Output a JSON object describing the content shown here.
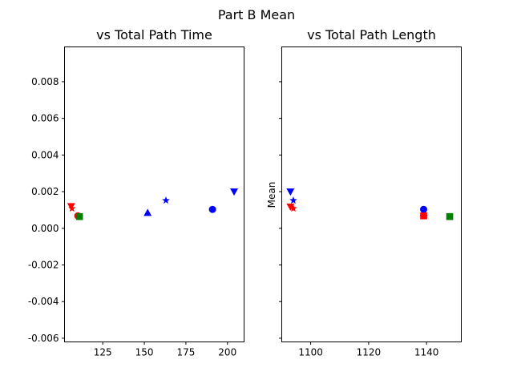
{
  "figure": {
    "suptitle": "Part B Mean"
  },
  "chart_data": [
    {
      "type": "scatter",
      "title": "vs Total Path Time",
      "xlabel": "",
      "ylabel": "Mean",
      "xlim": [
        102,
        210
      ],
      "ylim": [
        -0.0062,
        0.0099
      ],
      "xticks": [
        125,
        150,
        175,
        200
      ],
      "yticks": [
        -0.006,
        -0.004,
        -0.002,
        0.0,
        0.002,
        0.004,
        0.006,
        0.008
      ],
      "ytick_labels": [
        "-0.006",
        "-0.004",
        "-0.002",
        "0.000",
        "0.002",
        "0.004",
        "0.006",
        "0.008"
      ],
      "grid": false,
      "points": [
        {
          "x": 106,
          "y": 0.0012,
          "marker": "triangle-down",
          "color": "#ff0000"
        },
        {
          "x": 106.5,
          "y": 0.00108,
          "marker": "star",
          "color": "#ff0000"
        },
        {
          "x": 110,
          "y": 0.00068,
          "marker": "circle",
          "color": "#ff0000"
        },
        {
          "x": 111,
          "y": 0.00064,
          "marker": "square",
          "color": "#008000"
        },
        {
          "x": 152,
          "y": 0.00085,
          "marker": "triangle-up",
          "color": "#0000ff"
        },
        {
          "x": 163,
          "y": 0.00152,
          "marker": "star",
          "color": "#0000ff"
        },
        {
          "x": 191,
          "y": 0.00103,
          "marker": "circle",
          "color": "#0000ff"
        },
        {
          "x": 204,
          "y": 0.002,
          "marker": "triangle-down",
          "color": "#0000ff"
        }
      ]
    },
    {
      "type": "scatter",
      "title": "vs Total Path Length",
      "xlabel": "",
      "ylabel": "",
      "xlim": [
        1090,
        1152
      ],
      "ylim": [
        -0.0062,
        0.0099
      ],
      "xticks": [
        1100,
        1120,
        1140
      ],
      "yticks": [
        -0.006,
        -0.004,
        -0.002,
        0.0,
        0.002,
        0.004,
        0.006,
        0.008
      ],
      "shared_y_hidden_labels": true,
      "grid": false,
      "points": [
        {
          "x": 1093,
          "y": 0.002,
          "marker": "triangle-down",
          "color": "#0000ff"
        },
        {
          "x": 1094,
          "y": 0.00152,
          "marker": "star",
          "color": "#0000ff"
        },
        {
          "x": 1093,
          "y": 0.00118,
          "marker": "triangle-down",
          "color": "#ff0000"
        },
        {
          "x": 1094,
          "y": 0.00108,
          "marker": "star",
          "color": "#ff0000"
        },
        {
          "x": 1139,
          "y": 0.00103,
          "marker": "circle",
          "color": "#0000ff"
        },
        {
          "x": 1139,
          "y": 0.00085,
          "marker": "triangle-up",
          "color": "#0000ff"
        },
        {
          "x": 1139,
          "y": 0.00068,
          "marker": "square",
          "color": "#ff0000"
        },
        {
          "x": 1148,
          "y": 0.00064,
          "marker": "square",
          "color": "#008000"
        }
      ]
    }
  ]
}
